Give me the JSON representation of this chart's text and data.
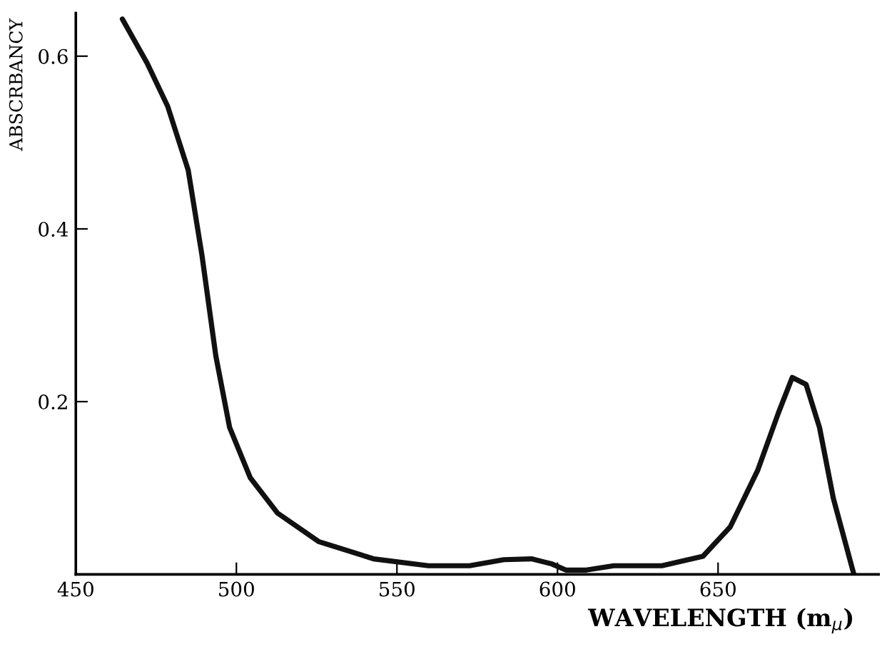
{
  "chart_data": {
    "type": "line",
    "xlabel": "WAVELENGTH (m$_{μ}$)",
    "ylabel": "ABSCRBANCY",
    "x": [
      464.5,
      472.2,
      478.6,
      485.0,
      489.3,
      493.6,
      497.9,
      504.3,
      512.8,
      525.6,
      542.7,
      559.8,
      572.6,
      583.3,
      591.9,
      598.3,
      602.6,
      609.0,
      617.5,
      632.5,
      645.3,
      653.8,
      662.4,
      668.8,
      673.1,
      677.4,
      681.6,
      685.9,
      692.3
    ],
    "series": [
      {
        "color": "#111111",
        "values": [
          0.643,
          0.592,
          0.542,
          0.468,
          0.369,
          0.253,
          0.17,
          0.112,
          0.071,
          0.038,
          0.018,
          0.01,
          0.01,
          0.017,
          0.018,
          0.012,
          0.005,
          0.005,
          0.01,
          0.01,
          0.021,
          0.055,
          0.121,
          0.187,
          0.228,
          0.22,
          0.17,
          0.088,
          0.0
        ]
      }
    ],
    "xlim": [
      450,
      700
    ],
    "ylim": [
      0,
      0.65
    ],
    "xticks": [
      450,
      500,
      550,
      600,
      650
    ],
    "yticks": [
      0.2,
      0.4,
      0.6
    ],
    "grid": false,
    "legend": false
  }
}
